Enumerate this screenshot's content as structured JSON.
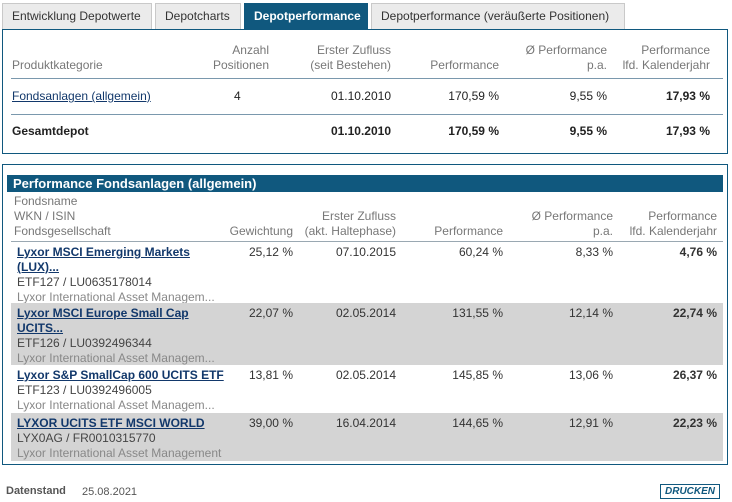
{
  "tabs": [
    {
      "label": "Entwicklung Depotwerte"
    },
    {
      "label": "Depotcharts"
    },
    {
      "label": "Depotperformance"
    },
    {
      "label": "Depotperformance (veräußerte Positionen)"
    }
  ],
  "summary": {
    "headers": {
      "category": "Produktkategorie",
      "count_l1": "Anzahl",
      "count_l2": "Positionen",
      "inflow_l1": "Erster Zufluss",
      "inflow_l2": "(seit Bestehen)",
      "performance": "Performance",
      "perf_pa_l1": "Ø Performance",
      "perf_pa_l2": "p.a.",
      "perf_year_l1": "Performance",
      "perf_year_l2": "lfd. Kalenderjahr"
    },
    "row": {
      "category": "Fondsanlagen (allgemein)",
      "count": "4",
      "inflow": "01.10.2010",
      "performance": "170,59 %",
      "perf_pa": "9,55 %",
      "perf_year": "17,93 %"
    },
    "total": {
      "label": "Gesamtdepot",
      "inflow": "01.10.2010",
      "performance": "170,59 %",
      "perf_pa": "9,55 %",
      "perf_year": "17,93 %"
    }
  },
  "funds": {
    "title": "Performance Fondsanlagen (allgemein)",
    "headers": {
      "name": "Fondsname",
      "wkn": "WKN / ISIN",
      "company": "Fondsgesellschaft",
      "weight": "Gewichtung",
      "inflow_l1": "Erster Zufluss",
      "inflow_l2": "(akt. Haltephase)",
      "performance": "Performance",
      "perf_pa_l1": "Ø Performance",
      "perf_pa_l2": "p.a.",
      "perf_year_l1": "Performance",
      "perf_year_l2": "lfd. Kalenderjahr"
    },
    "rows": [
      {
        "name_l1": "Lyxor MSCI Emerging Markets",
        "name_l2": "(LUX)...",
        "wkn": "ETF127 /  LU0635178014",
        "company": "Lyxor International Asset Managem...",
        "weight": "25,12 %",
        "inflow": "07.10.2015",
        "performance": "60,24 %",
        "perf_pa": "8,33 %",
        "perf_year": "4,76 %"
      },
      {
        "name_l1": "Lyxor MSCI Europe Small Cap",
        "name_l2": "UCITS...",
        "wkn": "ETF126 /  LU0392496344",
        "company": "Lyxor International Asset Managem...",
        "weight": "22,07 %",
        "inflow": "02.05.2014",
        "performance": "131,55 %",
        "perf_pa": "12,14 %",
        "perf_year": "22,74 %"
      },
      {
        "name_l1": "Lyxor S&P SmallCap 600 UCITS ETF",
        "wkn": "ETF123 /  LU0392496005",
        "company": "Lyxor International Asset Managem...",
        "weight": "13,81 %",
        "inflow": "02.05.2014",
        "performance": "145,85 %",
        "perf_pa": "13,06 %",
        "perf_year": "26,37 %"
      },
      {
        "name_l1": "LYXOR UCITS ETF MSCI WORLD",
        "wkn": "LYX0AG /  FR0010315770",
        "company": "Lyxor International Asset Management",
        "weight": "39,00 %",
        "inflow": "16.04.2014",
        "performance": "144,65 %",
        "perf_pa": "12,91 %",
        "perf_year": "22,23 %"
      }
    ]
  },
  "footer": {
    "label": "Datenstand",
    "date": "25.08.2021",
    "print_label": "DRUCKEN"
  }
}
